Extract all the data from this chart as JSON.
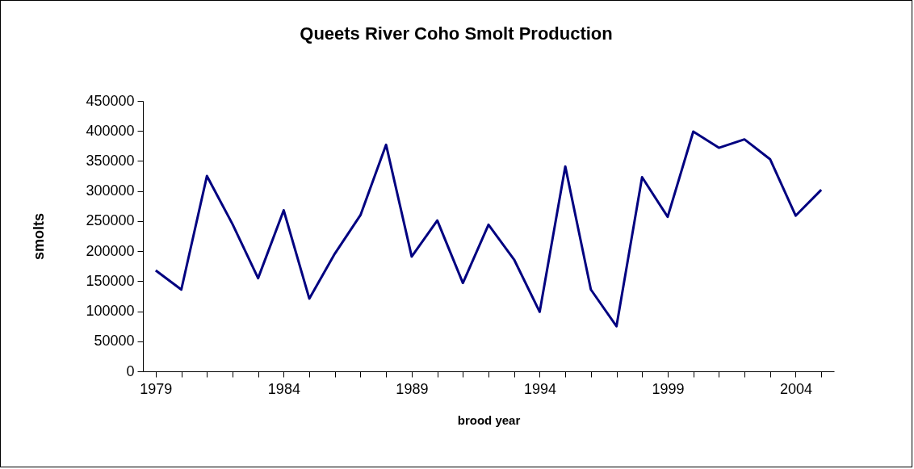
{
  "chart_data": {
    "type": "line",
    "title": "Queets River Coho Smolt Production",
    "xlabel": "brood year",
    "ylabel": "smolts",
    "categories": [
      "1979",
      null,
      null,
      null,
      null,
      "1984",
      null,
      null,
      null,
      null,
      "1989",
      null,
      null,
      null,
      null,
      "1994",
      null,
      null,
      null,
      null,
      "1999",
      null,
      null,
      null,
      null,
      "2004",
      null
    ],
    "series": [
      {
        "color": "#000080",
        "values": [
          168000,
          136000,
          325000,
          245000,
          155000,
          268000,
          121000,
          196000,
          260000,
          377000,
          191000,
          251000,
          147000,
          244000,
          186000,
          99000,
          341000,
          136000,
          75000,
          323000,
          257000,
          399000,
          372000,
          386000,
          353000,
          259000,
          302000
        ]
      }
    ],
    "ylim": [
      0,
      450000
    ],
    "yticks": [
      0,
      50000,
      100000,
      150000,
      200000,
      250000,
      300000,
      350000,
      400000,
      450000
    ]
  }
}
